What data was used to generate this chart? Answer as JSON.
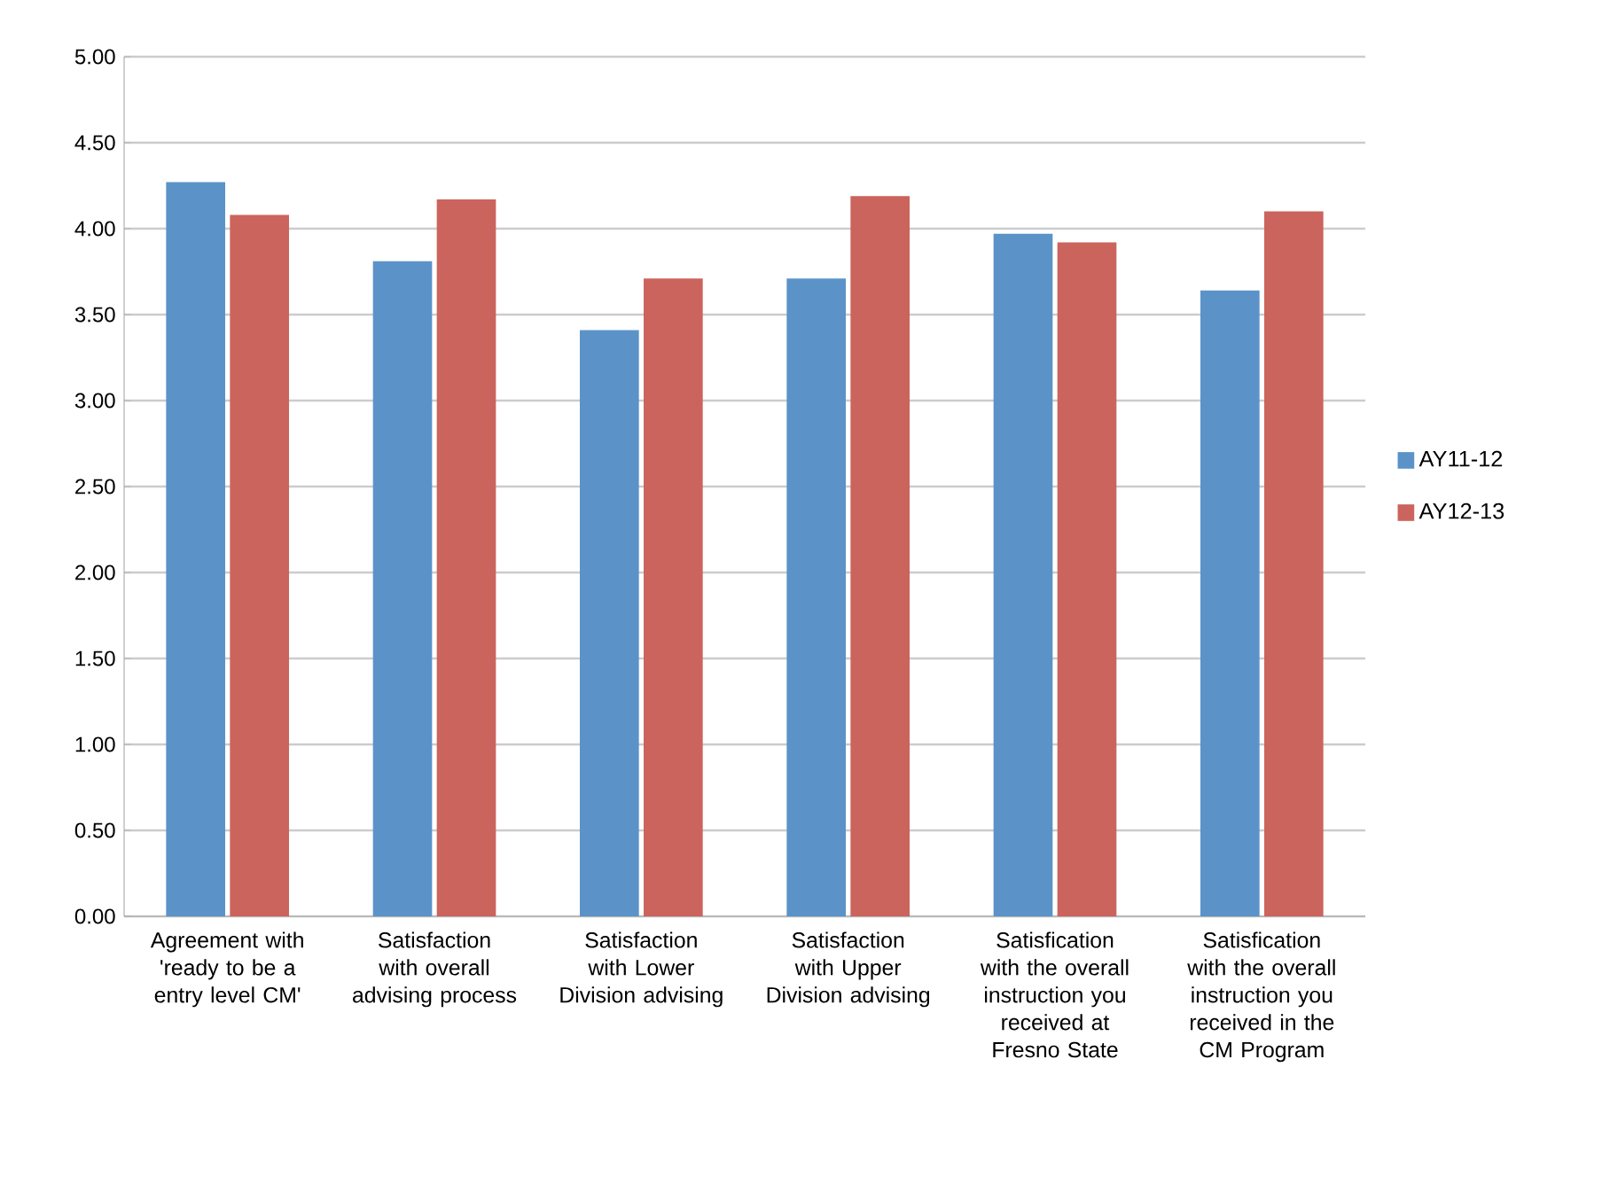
{
  "chart_data": {
    "type": "bar",
    "categories": [
      "Agreement with 'ready to be a entry level CM'",
      "Satisfaction with overall advising process",
      "Satisfaction with Lower Division advising",
      "Satisfaction with Upper Division advising",
      "Satisfication with the overall instruction you received at Fresno State",
      "Satisfication with the overall instruction you received in the CM Program"
    ],
    "series": [
      {
        "name": "AY11-12",
        "color": "#5b93c8",
        "values": [
          4.27,
          3.81,
          3.41,
          3.71,
          3.97,
          3.64
        ]
      },
      {
        "name": "AY12-13",
        "color": "#cb645d",
        "values": [
          4.08,
          4.17,
          3.71,
          4.19,
          3.92,
          4.1
        ]
      }
    ],
    "ylim": [
      0,
      5
    ],
    "yticks": [
      {
        "value": 0,
        "label": "0.00"
      },
      {
        "value": 0.5,
        "label": "0.50"
      },
      {
        "value": 1,
        "label": "1.00"
      },
      {
        "value": 1.5,
        "label": "1.50"
      },
      {
        "value": 2,
        "label": "2.00"
      },
      {
        "value": 2.5,
        "label": "2.50"
      },
      {
        "value": 3,
        "label": "3.00"
      },
      {
        "value": 3.5,
        "label": "3.50"
      },
      {
        "value": 4,
        "label": "4.00"
      },
      {
        "value": 4.5,
        "label": "4.50"
      },
      {
        "value": 5,
        "label": "5.00"
      }
    ],
    "grid": "y",
    "legend": "right"
  }
}
